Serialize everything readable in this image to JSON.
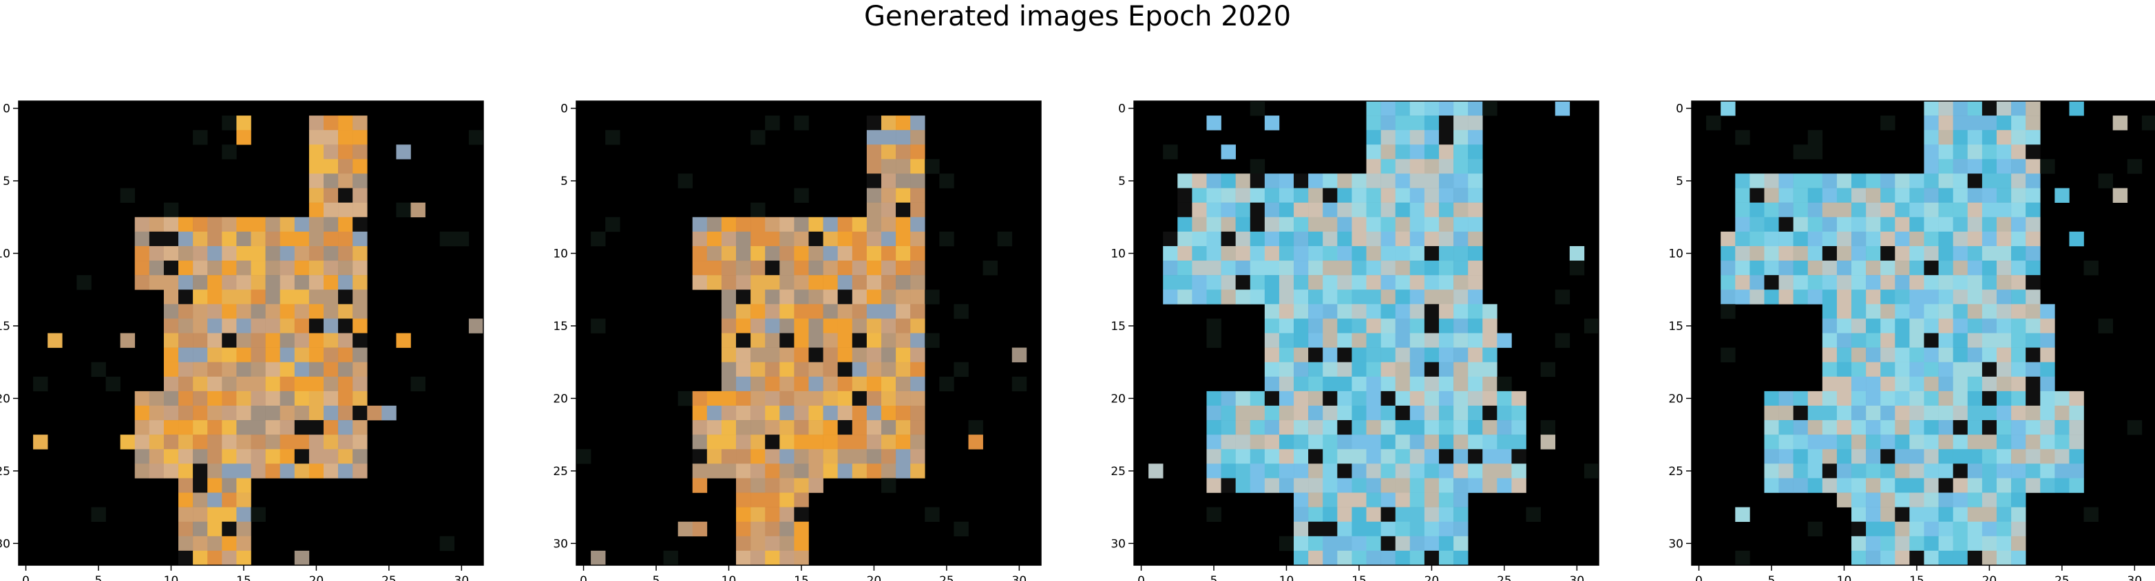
{
  "title": "Generated images Epoch 2020",
  "colors": {
    "background": "#000000",
    "orange": "#f0a030",
    "tan": "#d8b088",
    "cyan": "#6ccbe0",
    "grid_line": "#000000"
  },
  "chart_data": [
    {
      "type": "heatmap",
      "title": "",
      "xlim": [
        -0.5,
        31.5
      ],
      "ylim": [
        31.5,
        -0.5
      ],
      "xticks": [
        0,
        5,
        10,
        15,
        20,
        25,
        30
      ],
      "yticks": [
        0,
        5,
        10,
        15,
        20,
        25,
        30
      ],
      "palette": "warm",
      "description_rows": "32x32 generated RGB image, mostly orange/tan blob on black"
    },
    {
      "type": "heatmap",
      "title": "",
      "xlim": [
        -0.5,
        31.5
      ],
      "ylim": [
        31.5,
        -0.5
      ],
      "xticks": [
        0,
        5,
        10,
        15,
        20,
        25,
        30
      ],
      "yticks": [
        0,
        5,
        10,
        15,
        20,
        25,
        30
      ],
      "palette": "warm"
    },
    {
      "type": "heatmap",
      "title": "",
      "xlim": [
        -0.5,
        31.5
      ],
      "ylim": [
        31.5,
        -0.5
      ],
      "xticks": [
        0,
        5,
        10,
        15,
        20,
        25,
        30
      ],
      "yticks": [
        0,
        5,
        10,
        15,
        20,
        25,
        30
      ],
      "palette": "cool"
    },
    {
      "type": "heatmap",
      "title": "",
      "xlim": [
        -0.5,
        31.5
      ],
      "ylim": [
        31.5,
        -0.5
      ],
      "xticks": [
        0,
        5,
        10,
        15,
        20,
        25,
        30
      ],
      "yticks": [
        0,
        5,
        10,
        15,
        20,
        25,
        30
      ],
      "palette": "cool"
    }
  ]
}
